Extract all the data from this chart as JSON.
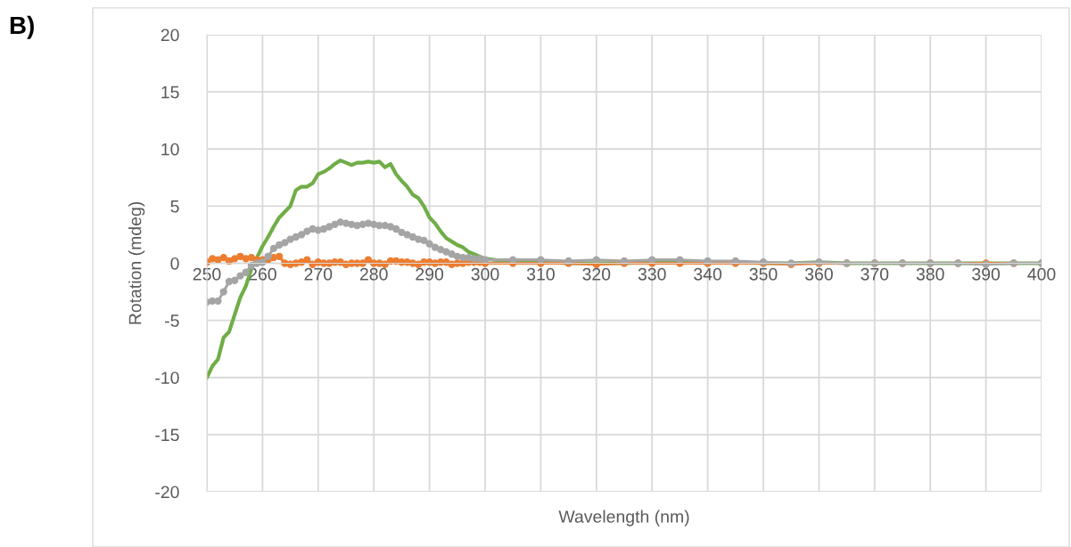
{
  "chart_data": {
    "type": "line",
    "xlabel": "Wavelength (nm)",
    "ylabel": "Rotation (mdeg)",
    "annotations": [
      "B)"
    ],
    "xlim": [
      250,
      400
    ],
    "xticks": [
      250,
      260,
      270,
      280,
      290,
      300,
      310,
      320,
      330,
      340,
      350,
      360,
      370,
      380,
      390,
      400
    ],
    "ylim": [
      -20,
      20
    ],
    "yticks": [
      -20,
      -15,
      -10,
      -5,
      0,
      5,
      10,
      15,
      20
    ],
    "grid": true,
    "x": [
      250,
      251,
      252,
      253,
      254,
      255,
      256,
      257,
      258,
      259,
      260,
      261,
      262,
      263,
      264,
      265,
      266,
      267,
      268,
      269,
      270,
      271,
      272,
      273,
      274,
      275,
      276,
      277,
      278,
      279,
      280,
      281,
      282,
      283,
      284,
      285,
      286,
      287,
      288,
      289,
      290,
      291,
      292,
      293,
      294,
      295,
      296,
      297,
      298,
      299,
      300,
      305,
      310,
      315,
      320,
      325,
      330,
      335,
      340,
      345,
      350,
      355,
      360,
      365,
      370,
      375,
      380,
      385,
      390,
      395,
      400
    ],
    "series": [
      {
        "color": "#70ad47",
        "marker": "none",
        "values": [
          -10,
          -9,
          -8.4,
          -6.5,
          -6,
          -4.5,
          -3,
          -2,
          -0.5,
          0.5,
          1.5,
          2.3,
          3.2,
          4,
          4.5,
          5,
          6.4,
          6.7,
          6.7,
          7,
          7.8,
          8,
          8.3,
          8.7,
          9,
          8.8,
          8.6,
          8.8,
          8.8,
          8.9,
          8.8,
          8.9,
          8.4,
          8.7,
          7.8,
          7.2,
          6.7,
          6,
          5.7,
          5,
          4,
          3.5,
          2.8,
          2.2,
          1.9,
          1.6,
          1.4,
          1,
          0.8,
          0.6,
          0.4,
          0.1,
          0.1,
          0,
          0,
          0,
          0.1,
          0.1,
          0.1,
          0.1,
          0,
          0,
          0.1,
          0,
          0,
          0,
          0,
          0,
          0,
          0,
          0
        ]
      },
      {
        "color": "#ed7d31",
        "marker": "circle",
        "values": [
          0.1,
          0.4,
          0.3,
          0.5,
          0.2,
          0.4,
          0.6,
          0.4,
          0.5,
          0.3,
          0.3,
          0.3,
          0.5,
          0.6,
          0,
          -0.1,
          0,
          0.1,
          0.3,
          -0.1,
          0.1,
          0,
          0,
          0.1,
          0.1,
          -0.1,
          0,
          0,
          0,
          0.3,
          0,
          0,
          -0.1,
          0.2,
          0.2,
          0.1,
          0.1,
          0,
          -0.1,
          0.1,
          0.1,
          0,
          0.1,
          0.1,
          -0.1,
          0,
          0,
          0.1,
          0.1,
          0.1,
          0,
          0,
          0,
          0,
          -0.1,
          0,
          0,
          0,
          0,
          0,
          0,
          -0.1,
          0,
          0,
          0,
          0,
          0,
          0,
          0,
          0,
          0
        ]
      },
      {
        "color": "#a5a5a5",
        "marker": "circle",
        "values": [
          -3.4,
          -3.3,
          -3.3,
          -2.5,
          -1.6,
          -1.5,
          -1.1,
          -0.8,
          -0.2,
          0,
          0.1,
          0.6,
          1.3,
          1.6,
          1.8,
          2.1,
          2.3,
          2.5,
          2.8,
          3,
          2.9,
          3,
          3.2,
          3.4,
          3.6,
          3.5,
          3.4,
          3.3,
          3.4,
          3.5,
          3.4,
          3.3,
          3.3,
          3.2,
          3,
          2.7,
          2.5,
          2.3,
          2.1,
          2,
          1.7,
          1.4,
          1.2,
          1,
          0.8,
          0.6,
          0.5,
          0.5,
          0.4,
          0.4,
          0.3,
          0.3,
          0.3,
          0.2,
          0.3,
          0.2,
          0.3,
          0.3,
          0.2,
          0.2,
          0.1,
          0,
          0.1,
          0,
          0,
          0,
          0,
          0,
          -0.1,
          0,
          0
        ]
      }
    ]
  }
}
